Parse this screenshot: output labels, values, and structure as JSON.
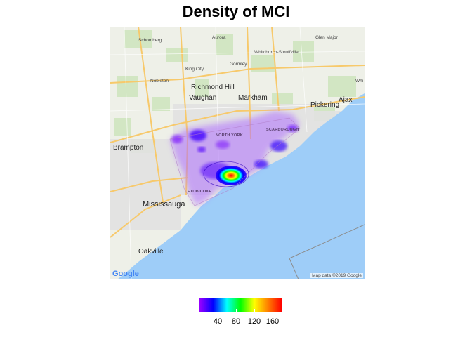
{
  "title": "Density of MCI",
  "map": {
    "places": [
      {
        "name": "Schomberg",
        "size": "sm"
      },
      {
        "name": "Aurora",
        "size": "sm"
      },
      {
        "name": "Glen Major",
        "size": "sm"
      },
      {
        "name": "Whitchurch-Stouffville",
        "size": "sm"
      },
      {
        "name": "Gormley",
        "size": "sm"
      },
      {
        "name": "King City",
        "size": "sm"
      },
      {
        "name": "Nobleton",
        "size": "sm"
      },
      {
        "name": "Richmond Hill",
        "size": "big"
      },
      {
        "name": "Vaughan",
        "size": "big"
      },
      {
        "name": "Markham",
        "size": "big"
      },
      {
        "name": "Pickering",
        "size": "big"
      },
      {
        "name": "Ajax",
        "size": "big"
      },
      {
        "name": "Whi",
        "size": "sm"
      },
      {
        "name": "Brampton",
        "size": "big"
      },
      {
        "name": "Mississauga",
        "size": "huge"
      },
      {
        "name": "Oakville",
        "size": "big"
      },
      {
        "name": "NORTH YORK",
        "size": "dist"
      },
      {
        "name": "SCARBOROUGH",
        "size": "dist"
      },
      {
        "name": "ETOBICOKE",
        "size": "dist"
      }
    ],
    "google_logo": "Google",
    "attribution": "Map data ©2019 Google"
  },
  "legend": {
    "colors": [
      "#9b00ff",
      "#0000ff",
      "#00ffff",
      "#00ff00",
      "#ffff00",
      "#ff8000",
      "#ff0000"
    ],
    "tick_labels": [
      "40",
      "80",
      "120",
      "160"
    ],
    "tick_values": [
      40,
      80,
      120,
      160
    ],
    "range": [
      0,
      180
    ]
  }
}
